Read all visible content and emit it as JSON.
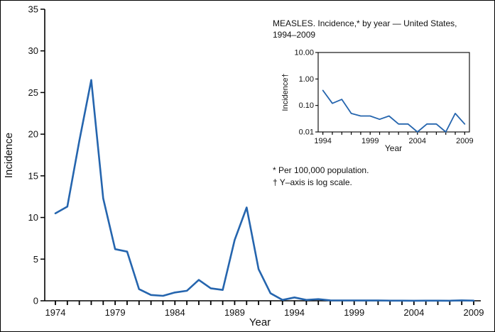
{
  "figure": {
    "line_color": "#2565ae",
    "axis_color": "#000000",
    "main": {
      "ylabel": "Incidence",
      "xlabel": "Year"
    },
    "inset": {
      "title_line1": "MEASLES. Incidence,* by year — United States,",
      "title_line2": "1994–2009",
      "ylabel": "Incidence†",
      "xlabel": "Year",
      "footnote1": "* Per 100,000 population.",
      "footnote2": "† Y–axis is log scale."
    }
  },
  "chart_data": [
    {
      "id": "main",
      "type": "line",
      "title": "",
      "xlabel": "Year",
      "ylabel": "Incidence",
      "x": [
        1974,
        1975,
        1976,
        1977,
        1978,
        1979,
        1980,
        1981,
        1982,
        1983,
        1984,
        1985,
        1986,
        1987,
        1988,
        1989,
        1990,
        1991,
        1992,
        1993,
        1994,
        1995,
        1996,
        1997,
        1998,
        1999,
        2000,
        2001,
        2002,
        2003,
        2004,
        2005,
        2006,
        2007,
        2008,
        2009
      ],
      "y": [
        10.5,
        11.3,
        19.2,
        26.5,
        12.3,
        6.2,
        5.9,
        1.4,
        0.7,
        0.6,
        1.0,
        1.2,
        2.5,
        1.5,
        1.3,
        7.3,
        11.2,
        3.8,
        0.9,
        0.1,
        0.4,
        0.1,
        0.2,
        0.05,
        0.04,
        0.04,
        0.03,
        0.04,
        0.02,
        0.02,
        0.01,
        0.02,
        0.02,
        0.01,
        0.05,
        0.02
      ],
      "ylim": [
        0,
        35
      ],
      "yticks": [
        0,
        5,
        10,
        15,
        20,
        25,
        30,
        35
      ],
      "xticks_labeled": [
        1974,
        1979,
        1984,
        1989,
        1994,
        1999,
        2004,
        2009
      ],
      "grid": false,
      "legend": "none"
    },
    {
      "id": "inset",
      "type": "line",
      "title": "MEASLES. Incidence,* by year — United States, 1994–2009",
      "xlabel": "Year",
      "ylabel": "Incidence†",
      "yscale": "log",
      "x": [
        1994,
        1995,
        1996,
        1997,
        1998,
        1999,
        2000,
        2001,
        2002,
        2003,
        2004,
        2005,
        2006,
        2007,
        2008,
        2009
      ],
      "y": [
        0.37,
        0.12,
        0.17,
        0.05,
        0.04,
        0.04,
        0.03,
        0.04,
        0.02,
        0.02,
        0.01,
        0.02,
        0.02,
        0.01,
        0.05,
        0.02
      ],
      "ylim": [
        0.01,
        10
      ],
      "yticks": [
        0.01,
        0.1,
        1,
        10
      ],
      "ytick_labels": [
        "0.01",
        "0.10",
        "1.00",
        "10.00"
      ],
      "xticks_labeled": [
        1994,
        1999,
        2004,
        2009
      ],
      "grid": false,
      "legend": "none"
    }
  ]
}
